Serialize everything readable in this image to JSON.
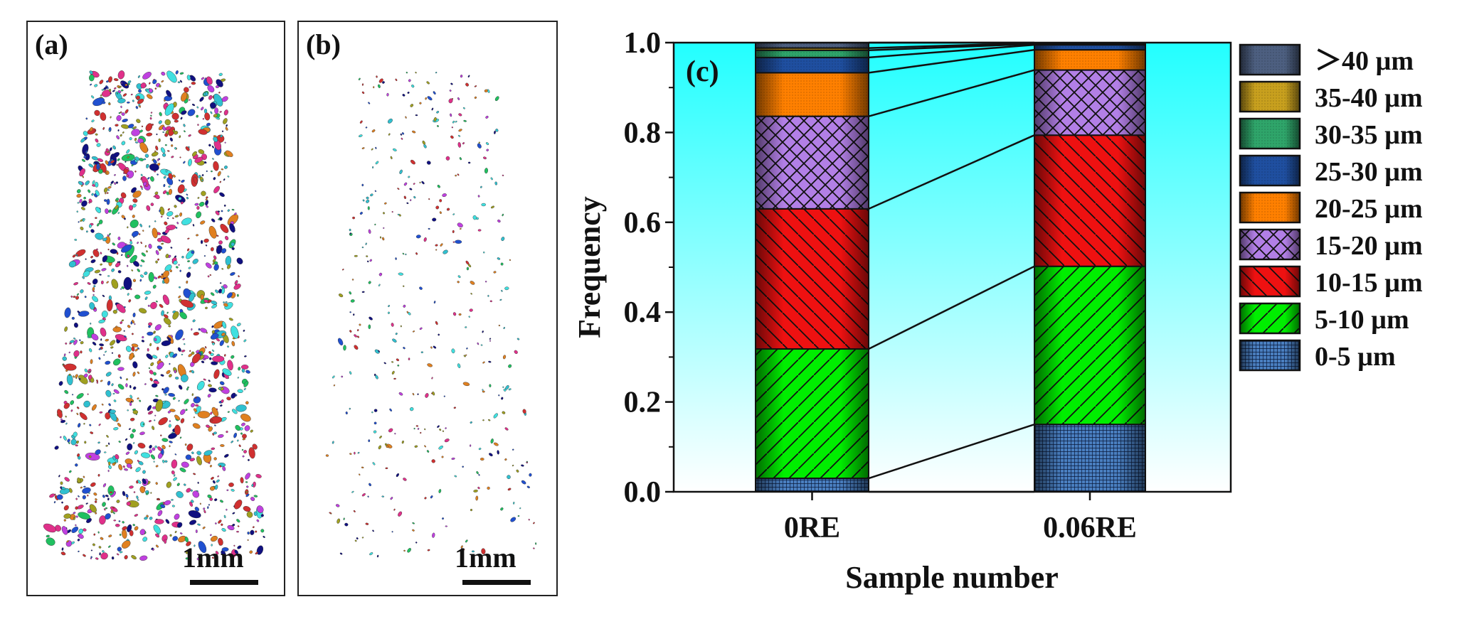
{
  "panels": {
    "a": {
      "label": "(a)",
      "scale_label": "1mm"
    },
    "b": {
      "label": "(b)",
      "scale_label": "1mm"
    }
  },
  "chart_data": {
    "type": "bar",
    "stacked": true,
    "panel_label": "(c)",
    "categories": [
      "0RE",
      "0.06RE"
    ],
    "xlabel": "Sample number",
    "ylabel": "Frequency",
    "ylim": [
      0,
      1.0
    ],
    "yticks": [
      "0.0",
      "0.2",
      "0.4",
      "0.6",
      "0.8",
      "1.0"
    ],
    "grid": false,
    "legend_position": "right-outside",
    "background": "gradient cyan (top) to white (bottom)",
    "series": [
      {
        "name": "0-5 µm",
        "values": [
          0.03,
          0.15
        ],
        "color": "#4a7fc0",
        "pattern": "grid"
      },
      {
        "name": "5-10 µm",
        "values": [
          0.288,
          0.352
        ],
        "color": "#00ee00",
        "pattern": "diag-up"
      },
      {
        "name": "10-15 µm",
        "values": [
          0.312,
          0.292
        ],
        "color": "#ee1111",
        "pattern": "diag-down"
      },
      {
        "name": "15-20 µm",
        "values": [
          0.206,
          0.145
        ],
        "color": "#b27fe6",
        "pattern": "crosshatch"
      },
      {
        "name": "20-25 µm",
        "values": [
          0.097,
          0.045
        ],
        "color": "#ff8000",
        "pattern": "dots"
      },
      {
        "name": "25-30 µm",
        "values": [
          0.034,
          0.011
        ],
        "color": "#1f4fa0",
        "pattern": "dots"
      },
      {
        "name": "30-35 µm",
        "values": [
          0.016,
          0.002
        ],
        "color": "#2fa56a",
        "pattern": "dots"
      },
      {
        "name": "35-40 µm",
        "values": [
          0.005,
          0.002
        ],
        "color": "#c8a01e",
        "pattern": "dots"
      },
      {
        "name": "＞40 µm",
        "values": [
          0.012,
          0.001
        ],
        "color": "#4d5f80",
        "pattern": "dots"
      }
    ]
  }
}
